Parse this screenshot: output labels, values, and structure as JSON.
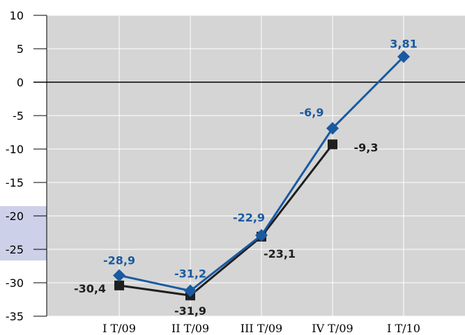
{
  "chart_data": {
    "type": "line",
    "categories": [
      "I T/09",
      "II T/09",
      "III T/09",
      "IV T/09",
      "I T/10"
    ],
    "ylim": [
      -35,
      10
    ],
    "yticks": [
      10,
      5,
      0,
      -5,
      -10,
      -15,
      -20,
      -25,
      -30,
      -35
    ],
    "grid": true,
    "series": [
      {
        "color": "#1f1f1f",
        "marker": "square",
        "values": [
          -30.4,
          -31.9,
          -23.1,
          -9.3,
          null
        ],
        "labels": [
          "-30,4",
          "-31,9",
          "-23,1",
          "-9,3",
          ""
        ]
      },
      {
        "color": "#1a5aa0",
        "marker": "diamond",
        "values": [
          -28.9,
          -31.2,
          -22.9,
          -6.9,
          3.81
        ],
        "labels": [
          "-28,9",
          "-31,2",
          "-22,9",
          "-6,9",
          "3,81"
        ]
      }
    ]
  }
}
